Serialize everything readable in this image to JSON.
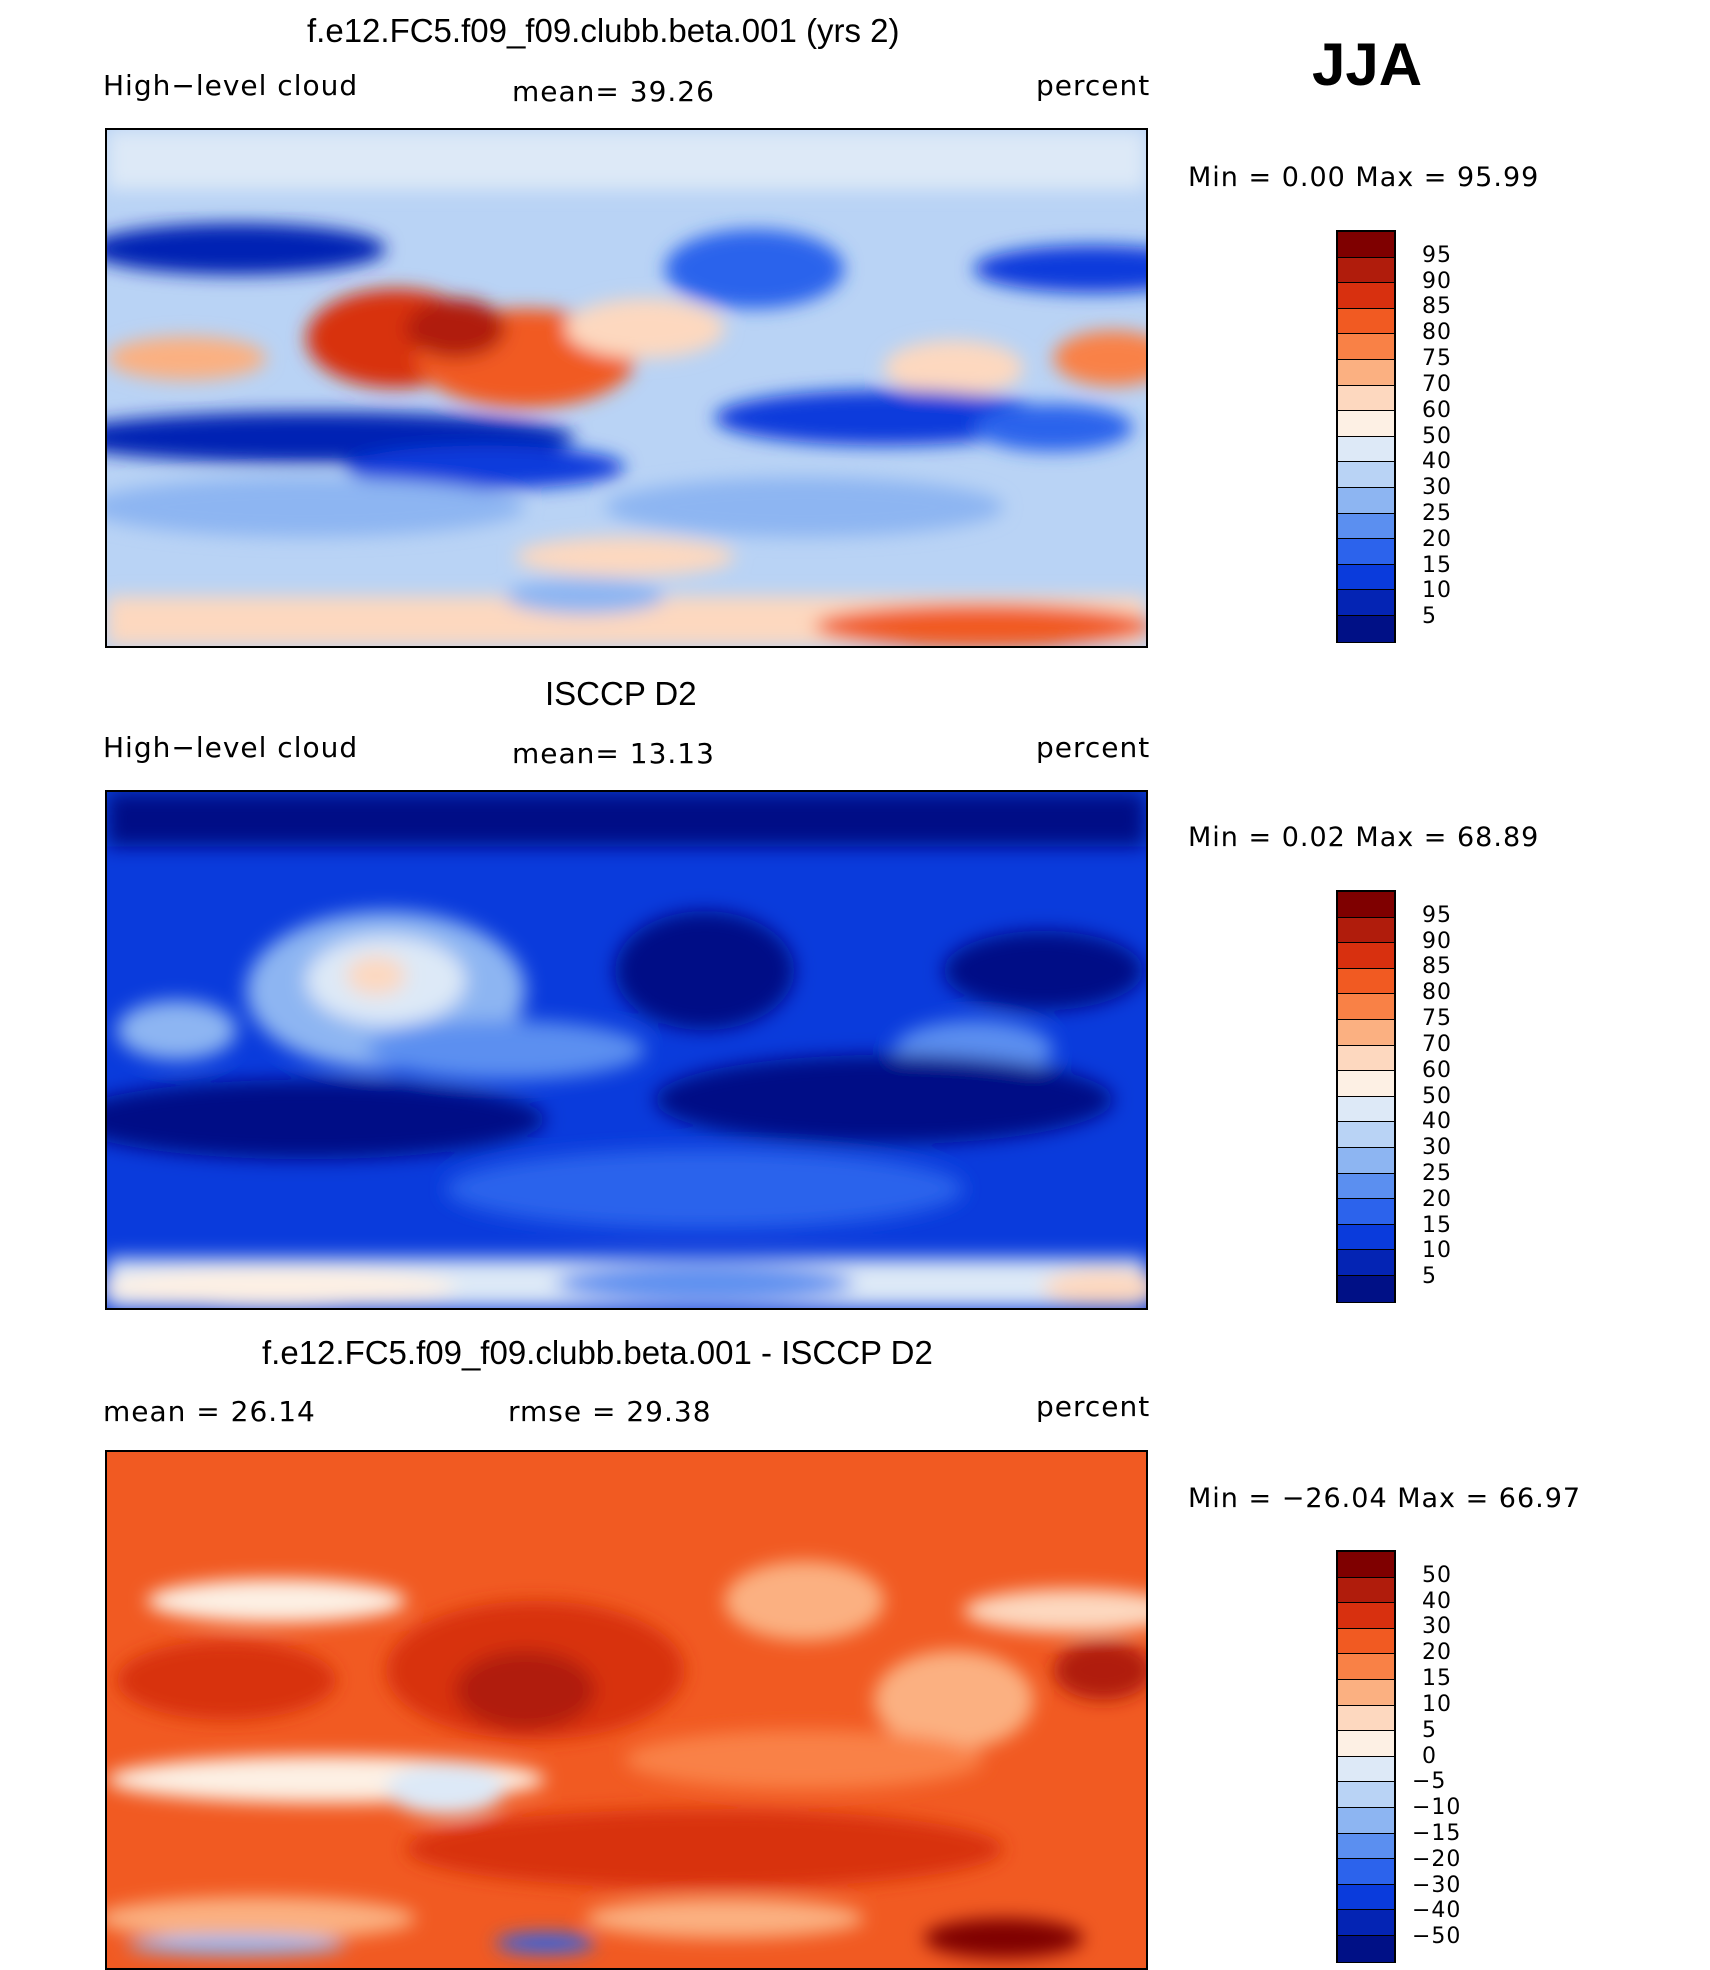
{
  "season": "JJA",
  "panels": [
    {
      "title": "f.e12.FC5.f09_f09.clubb.beta.001 (yrs 2)",
      "left_label": "High−level cloud",
      "center_label": "mean=   39.26",
      "right_label": "percent",
      "minmax": "Min  =     0.00  Max  =    95.99",
      "colorbar_labels": [
        "95",
        "90",
        "85",
        "80",
        "75",
        "70",
        "60",
        "50",
        "40",
        "30",
        "25",
        "20",
        "15",
        "10",
        "5"
      ],
      "colors": [
        "#7f0000",
        "#b01c0c",
        "#d8300f",
        "#f15a22",
        "#f98146",
        "#fbb081",
        "#fdd8bf",
        "#fdf0e4",
        "#dde9f7",
        "#b9d3f5",
        "#8db5f2",
        "#5b8ff0",
        "#2c63ec",
        "#0a3bdc",
        "#0424b4",
        "#001086"
      ]
    },
    {
      "title": "ISCCP D2",
      "left_label": "High−level cloud",
      "center_label": "mean=   13.13",
      "right_label": "percent",
      "minmax": "Min  =     0.02  Max  =    68.89",
      "colorbar_labels": [
        "95",
        "90",
        "85",
        "80",
        "75",
        "70",
        "60",
        "50",
        "40",
        "30",
        "25",
        "20",
        "15",
        "10",
        "5"
      ],
      "colors": [
        "#7f0000",
        "#b01c0c",
        "#d8300f",
        "#f15a22",
        "#f98146",
        "#fbb081",
        "#fdd8bf",
        "#fdf0e4",
        "#dde9f7",
        "#b9d3f5",
        "#8db5f2",
        "#5b8ff0",
        "#2c63ec",
        "#0a3bdc",
        "#0424b4",
        "#001086"
      ]
    },
    {
      "title": "f.e12.FC5.f09_f09.clubb.beta.001 - ISCCP D2",
      "left_label": "mean  =    26.14",
      "center_label": "rmse  =    29.38",
      "right_label": "percent",
      "minmax": "Min  = −26.04  Max  =    66.97",
      "colorbar_labels": [
        "50",
        "40",
        "30",
        "20",
        "15",
        "10",
        "5",
        "0",
        "−5",
        "−10",
        "−15",
        "−20",
        "−30",
        "−40",
        "−50"
      ],
      "colors": [
        "#7f0000",
        "#b01c0c",
        "#d8300f",
        "#f15a22",
        "#f98146",
        "#fbb081",
        "#fdd8bf",
        "#fdf0e4",
        "#dde9f7",
        "#b9d3f5",
        "#8db5f2",
        "#5b8ff0",
        "#2c63ec",
        "#0a3bdc",
        "#0424b4",
        "#001086"
      ]
    }
  ]
}
